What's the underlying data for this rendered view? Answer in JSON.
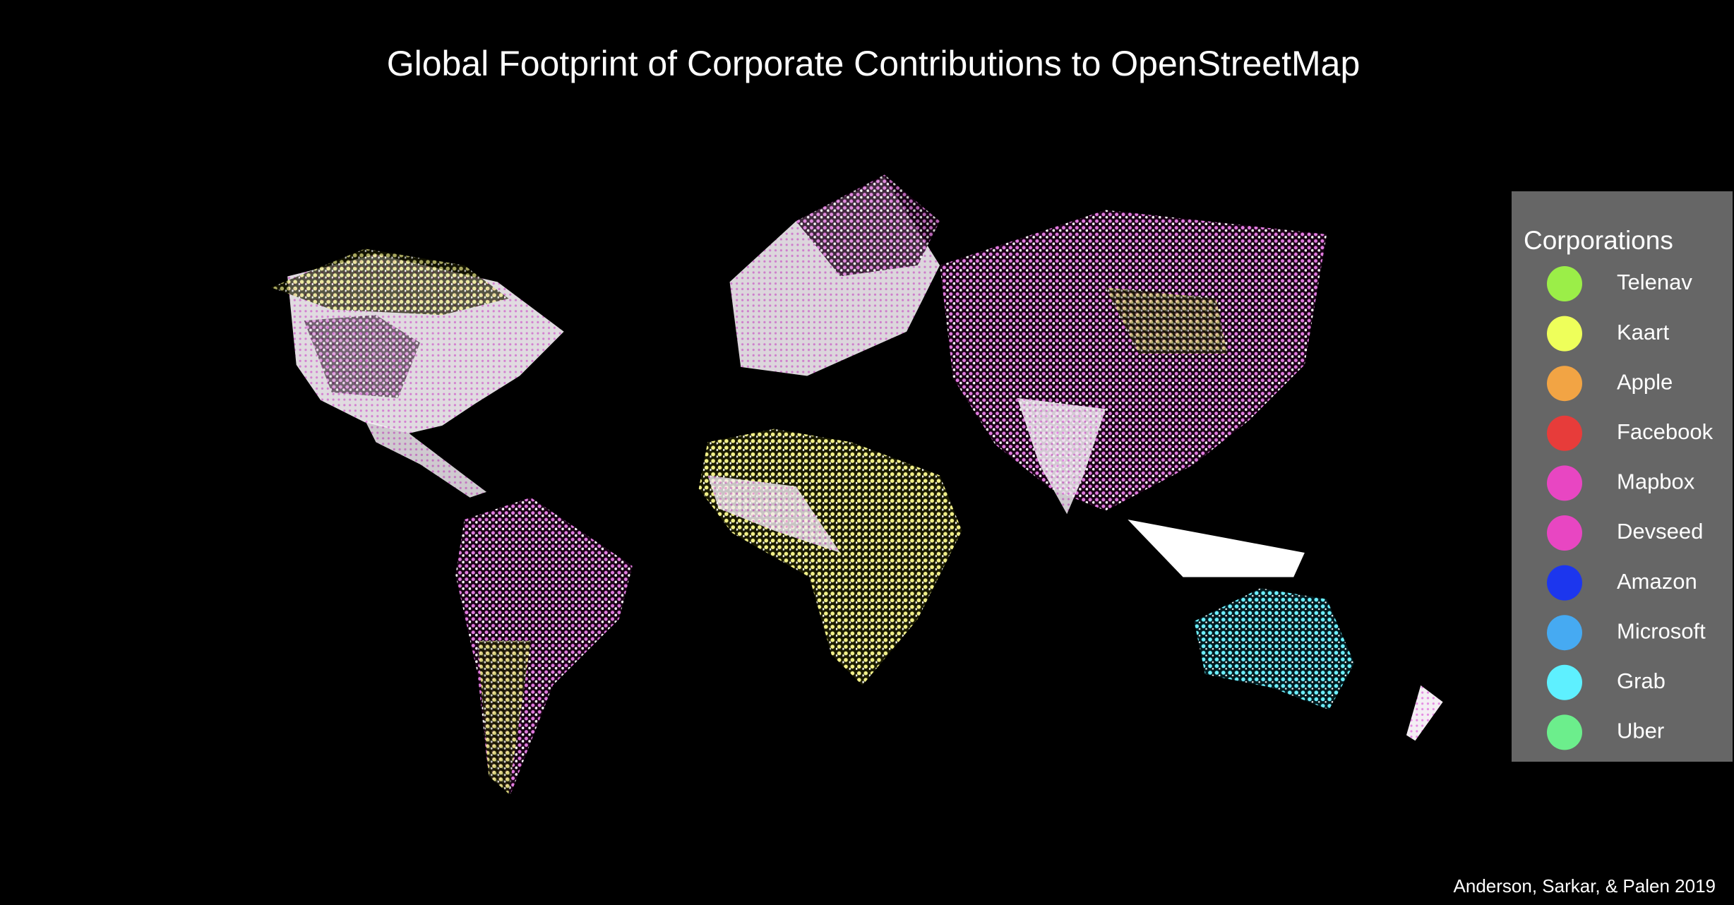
{
  "title": "Global Footprint of Corporate Contributions to OpenStreetMap",
  "legend": {
    "title": "Corporations",
    "items": [
      {
        "name": "Telenav",
        "color": "#9bee48"
      },
      {
        "name": "Kaart",
        "color": "#eeff5a"
      },
      {
        "name": "Apple",
        "color": "#f2a444"
      },
      {
        "name": "Facebook",
        "color": "#e73c3a"
      },
      {
        "name": "Mapbox",
        "color": "#e846c2"
      },
      {
        "name": "Devseed",
        "color": "#e846c2"
      },
      {
        "name": "Amazon",
        "color": "#1c36ee"
      },
      {
        "name": "Microsoft",
        "color": "#46aaf2"
      },
      {
        "name": "Grab",
        "color": "#5ef0ff"
      },
      {
        "name": "Uber",
        "color": "#6cee8c"
      }
    ]
  },
  "credit": "Anderson, Sarkar, & Palen 2019"
}
